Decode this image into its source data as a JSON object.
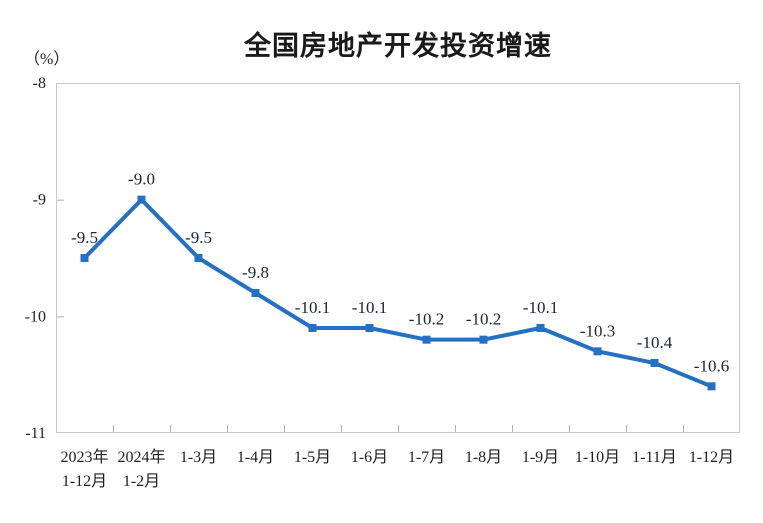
{
  "chart_data": {
    "type": "line",
    "title": "全国房地产开发投资增速",
    "unit_label": "（%）",
    "categories": [
      [
        "2023年",
        "1-12月"
      ],
      [
        "2024年",
        "1-2月"
      ],
      [
        "1-3月"
      ],
      [
        "1-4月"
      ],
      [
        "1-5月"
      ],
      [
        "1-6月"
      ],
      [
        "1-7月"
      ],
      [
        "1-8月"
      ],
      [
        "1-9月"
      ],
      [
        "1-10月"
      ],
      [
        "1-11月"
      ],
      [
        "1-12月"
      ]
    ],
    "values": [
      -9.5,
      -9.0,
      -9.5,
      -9.8,
      -10.1,
      -10.1,
      -10.2,
      -10.2,
      -10.1,
      -10.3,
      -10.4,
      -10.6
    ],
    "data_labels": [
      "-9.5",
      "-9.0",
      "-9.5",
      "-9.8",
      "-10.1",
      "-10.1",
      "-10.2",
      "-10.2",
      "-10.1",
      "-10.3",
      "-10.4",
      "-10.6"
    ],
    "ylim": [
      -11,
      -8
    ],
    "yticks": [
      "-8",
      "-9",
      "-10",
      "-11"
    ],
    "grid": "off",
    "legend": "none",
    "colors": {
      "line": "#2470c4",
      "marker": "#2470c4",
      "plot_border": "#c8c8c8",
      "tick": "#b0b0b0",
      "title_text": "#1a1a1a",
      "axis_text": "#1f1f1f",
      "data_label_text": "#1b2433"
    }
  }
}
